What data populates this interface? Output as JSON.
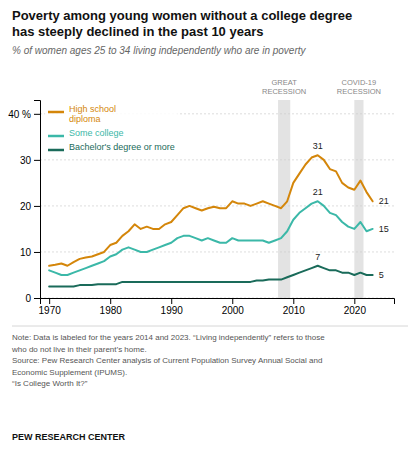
{
  "chart_data": {
    "type": "line",
    "title": "Poverty among young women without a college degree\nhas steeply declined in the past 10 years",
    "subtitle": "% of women ages 25 to 34 living independently who are in poverty",
    "x": [
      1970,
      1971,
      1972,
      1973,
      1974,
      1975,
      1976,
      1977,
      1978,
      1979,
      1980,
      1981,
      1982,
      1983,
      1984,
      1985,
      1986,
      1987,
      1988,
      1989,
      1990,
      1991,
      1992,
      1993,
      1994,
      1995,
      1996,
      1997,
      1998,
      1999,
      2000,
      2001,
      2002,
      2003,
      2004,
      2005,
      2006,
      2007,
      2008,
      2009,
      2010,
      2011,
      2012,
      2013,
      2014,
      2015,
      2016,
      2017,
      2018,
      2019,
      2020,
      2021,
      2022,
      2023
    ],
    "series": [
      {
        "name": "High school\ndiploma",
        "color": "#D4860A",
        "values": [
          7.0,
          7.2,
          7.5,
          7.0,
          7.8,
          8.5,
          8.8,
          9.0,
          9.5,
          10.0,
          11.5,
          12.0,
          13.5,
          14.5,
          16.0,
          15.0,
          15.5,
          15.0,
          15.0,
          16.0,
          16.5,
          18.0,
          19.5,
          20.0,
          19.5,
          19.0,
          19.5,
          19.8,
          19.5,
          19.5,
          21.0,
          20.5,
          20.5,
          20.0,
          20.5,
          21.0,
          20.5,
          20.0,
          19.5,
          21.0,
          25.0,
          27.0,
          29.0,
          30.5,
          31.0,
          30.0,
          28.0,
          27.5,
          25.0,
          24.0,
          23.5,
          25.5,
          23.0,
          21.0
        ],
        "value_labels": [
          null,
          null,
          null,
          null,
          null,
          null,
          null,
          null,
          null,
          null,
          null,
          null,
          null,
          null,
          null,
          null,
          null,
          null,
          null,
          null,
          null,
          null,
          null,
          null,
          null,
          null,
          null,
          null,
          null,
          null,
          null,
          null,
          null,
          null,
          null,
          null,
          null,
          null,
          null,
          null,
          null,
          null,
          null,
          null,
          "31",
          null,
          null,
          null,
          null,
          null,
          null,
          null,
          null,
          "21"
        ]
      },
      {
        "name": "Some college",
        "color": "#3BB8A8",
        "values": [
          6.0,
          5.5,
          5.0,
          5.0,
          5.5,
          6.0,
          6.5,
          7.0,
          7.5,
          8.0,
          9.0,
          9.5,
          10.5,
          11.0,
          10.5,
          10.0,
          10.0,
          10.5,
          11.0,
          11.5,
          12.0,
          13.0,
          13.5,
          13.5,
          13.0,
          12.5,
          13.0,
          12.5,
          12.0,
          12.0,
          13.0,
          12.5,
          12.5,
          12.5,
          12.5,
          12.5,
          12.0,
          12.5,
          13.0,
          14.5,
          17.0,
          18.5,
          19.5,
          20.5,
          21.0,
          20.0,
          18.5,
          18.0,
          16.5,
          15.5,
          15.0,
          16.5,
          14.5,
          15.0
        ],
        "value_labels": [
          null,
          null,
          null,
          null,
          null,
          null,
          null,
          null,
          null,
          null,
          null,
          null,
          null,
          null,
          null,
          null,
          null,
          null,
          null,
          null,
          null,
          null,
          null,
          null,
          null,
          null,
          null,
          null,
          null,
          null,
          null,
          null,
          null,
          null,
          null,
          null,
          null,
          null,
          null,
          null,
          null,
          null,
          null,
          null,
          "21",
          null,
          null,
          null,
          null,
          null,
          null,
          null,
          null,
          "15"
        ]
      },
      {
        "name": "Bachelor's degree or more",
        "color": "#1A6B5A",
        "values": [
          2.5,
          2.5,
          2.5,
          2.5,
          2.5,
          2.8,
          2.8,
          2.8,
          3.0,
          3.0,
          3.0,
          3.0,
          3.5,
          3.5,
          3.5,
          3.5,
          3.5,
          3.5,
          3.5,
          3.5,
          3.5,
          3.5,
          3.5,
          3.5,
          3.5,
          3.5,
          3.5,
          3.5,
          3.5,
          3.5,
          3.5,
          3.5,
          3.5,
          3.5,
          3.8,
          3.8,
          4.0,
          4.0,
          4.0,
          4.5,
          5.0,
          5.5,
          6.0,
          6.5,
          7.0,
          6.5,
          6.0,
          6.0,
          5.5,
          5.5,
          5.0,
          5.5,
          5.0,
          5.0
        ],
        "value_labels": [
          null,
          null,
          null,
          null,
          null,
          null,
          null,
          null,
          null,
          null,
          null,
          null,
          null,
          null,
          null,
          null,
          null,
          null,
          null,
          null,
          null,
          null,
          null,
          null,
          null,
          null,
          null,
          null,
          null,
          null,
          null,
          null,
          null,
          null,
          null,
          null,
          null,
          null,
          null,
          null,
          null,
          null,
          null,
          null,
          "7",
          null,
          null,
          null,
          null,
          null,
          null,
          null,
          null,
          "5"
        ]
      }
    ],
    "shaded_ranges": [
      {
        "label": "GREAT\nRECESSION",
        "x0": 2007.5,
        "x1": 2009.5
      },
      {
        "label": "COVID-19\nRECESSION",
        "x0": 2020.0,
        "x1": 2021.5
      }
    ],
    "xlim": [
      1968.5,
      2026.5
    ],
    "xticks": [
      1970,
      1980,
      1990,
      2000,
      2010,
      2020
    ],
    "ylim": [
      0,
      43
    ],
    "yticks": [
      0,
      10,
      20,
      30,
      {
        "value": 40,
        "label": "40 %"
      }
    ],
    "grid": true,
    "legend": "top-left",
    "notes": [
      "Note: Data is labeled for the years 2014 and 2023. “Living independently” refers to those",
      "who do not live in their parent’s home.",
      "Source: Pew Research Center analysis of Current Population Survey Annual Social and",
      "Economic Supplement (IPUMS).",
      "“Is College Worth It?”"
    ],
    "source": "PEW RESEARCH CENTER"
  }
}
